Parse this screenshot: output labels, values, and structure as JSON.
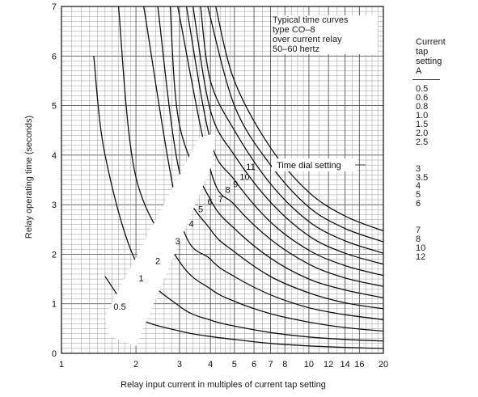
{
  "chart_data": {
    "type": "line",
    "x_scale": "log",
    "y_scale": "linear",
    "xlim": [
      1,
      20
    ],
    "ylim": [
      0,
      7
    ],
    "grid": true,
    "xlabel": "Relay input current in multiples of current tap setting",
    "ylabel": "Relay operating time (seconds)",
    "x_ticks": [
      "1",
      "2",
      "3",
      "4",
      "5",
      "6",
      "7",
      "8",
      "10",
      "12",
      "14",
      "16",
      "20"
    ],
    "y_ticks": [
      "0",
      "1",
      "2",
      "3",
      "4",
      "5",
      "6",
      "7"
    ],
    "annotation_title": [
      "Typical time curves",
      "type CO–8",
      "over current relay",
      "50–60 hertz"
    ],
    "dial_label": "Time dial setting",
    "series": [
      {
        "name": "0.5",
        "points": [
          [
            1.5,
            1.55
          ],
          [
            2,
            0.75
          ],
          [
            3,
            0.45
          ],
          [
            4,
            0.34
          ],
          [
            5,
            0.28
          ],
          [
            7,
            0.2
          ],
          [
            10,
            0.15
          ],
          [
            14,
            0.12
          ],
          [
            20,
            0.1
          ]
        ]
      },
      {
        "name": "1",
        "points": [
          [
            1.35,
            6.0
          ],
          [
            1.5,
            4.0
          ],
          [
            2,
            1.85
          ],
          [
            3,
            0.95
          ],
          [
            4,
            0.67
          ],
          [
            5,
            0.55
          ],
          [
            7,
            0.42
          ],
          [
            10,
            0.33
          ],
          [
            14,
            0.28
          ],
          [
            20,
            0.25
          ]
        ]
      },
      {
        "name": "2",
        "points": [
          [
            1.7,
            7.0
          ],
          [
            2,
            3.55
          ],
          [
            3,
            1.85
          ],
          [
            4,
            1.3
          ],
          [
            5,
            1.05
          ],
          [
            7,
            0.8
          ],
          [
            10,
            0.63
          ],
          [
            14,
            0.52
          ],
          [
            20,
            0.45
          ]
        ]
      },
      {
        "name": "3",
        "points": [
          [
            2.15,
            7.0
          ],
          [
            3,
            2.75
          ],
          [
            4,
            1.9
          ],
          [
            5,
            1.55
          ],
          [
            7,
            1.18
          ],
          [
            10,
            0.92
          ],
          [
            14,
            0.78
          ],
          [
            20,
            0.68
          ]
        ]
      },
      {
        "name": "4",
        "points": [
          [
            2.45,
            7.0
          ],
          [
            3,
            3.65
          ],
          [
            4,
            2.5
          ],
          [
            5,
            2.05
          ],
          [
            7,
            1.55
          ],
          [
            10,
            1.22
          ],
          [
            14,
            1.02
          ],
          [
            20,
            0.9
          ]
        ]
      },
      {
        "name": "5",
        "points": [
          [
            2.75,
            7.0
          ],
          [
            3,
            4.6
          ],
          [
            4,
            3.1
          ],
          [
            5,
            2.52
          ],
          [
            7,
            1.92
          ],
          [
            10,
            1.5
          ],
          [
            14,
            1.28
          ],
          [
            20,
            1.12
          ]
        ]
      },
      {
        "name": "6",
        "points": [
          [
            2.95,
            7.0
          ],
          [
            4,
            3.7
          ],
          [
            5,
            3.0
          ],
          [
            7,
            2.3
          ],
          [
            10,
            1.8
          ],
          [
            14,
            1.52
          ],
          [
            20,
            1.35
          ]
        ]
      },
      {
        "name": "7",
        "points": [
          [
            3.2,
            7.0
          ],
          [
            4,
            4.3
          ],
          [
            5,
            3.5
          ],
          [
            7,
            2.65
          ],
          [
            10,
            2.08
          ],
          [
            14,
            1.77
          ],
          [
            20,
            1.57
          ]
        ]
      },
      {
        "name": "8",
        "points": [
          [
            3.4,
            7.0
          ],
          [
            4,
            4.9
          ],
          [
            5,
            4.0
          ],
          [
            7,
            3.05
          ],
          [
            10,
            2.37
          ],
          [
            14,
            2.02
          ],
          [
            20,
            1.8
          ]
        ]
      },
      {
        "name": "9",
        "points": [
          [
            3.65,
            7.0
          ],
          [
            4,
            5.5
          ],
          [
            5,
            4.5
          ],
          [
            7,
            3.42
          ],
          [
            10,
            2.66
          ],
          [
            14,
            2.27
          ],
          [
            20,
            2.02
          ]
        ]
      },
      {
        "name": "10",
        "points": [
          [
            3.9,
            7.0
          ],
          [
            5,
            5.0
          ],
          [
            7,
            3.8
          ],
          [
            10,
            2.95
          ],
          [
            14,
            2.52
          ],
          [
            20,
            2.25
          ]
        ]
      },
      {
        "name": "11",
        "points": [
          [
            4.2,
            7.0
          ],
          [
            5,
            5.5
          ],
          [
            7,
            4.15
          ],
          [
            10,
            3.25
          ],
          [
            14,
            2.77
          ],
          [
            20,
            2.47
          ]
        ]
      }
    ]
  },
  "tap_table": {
    "heading": [
      "Current",
      "tap",
      "setting",
      "A"
    ],
    "values": [
      "0.5",
      "0.6",
      "0.8",
      "1.0",
      "1.5",
      "2.0",
      "2.5",
      "3",
      "3.5",
      "4",
      "5",
      "6",
      "7",
      "8",
      "10",
      "12"
    ]
  }
}
